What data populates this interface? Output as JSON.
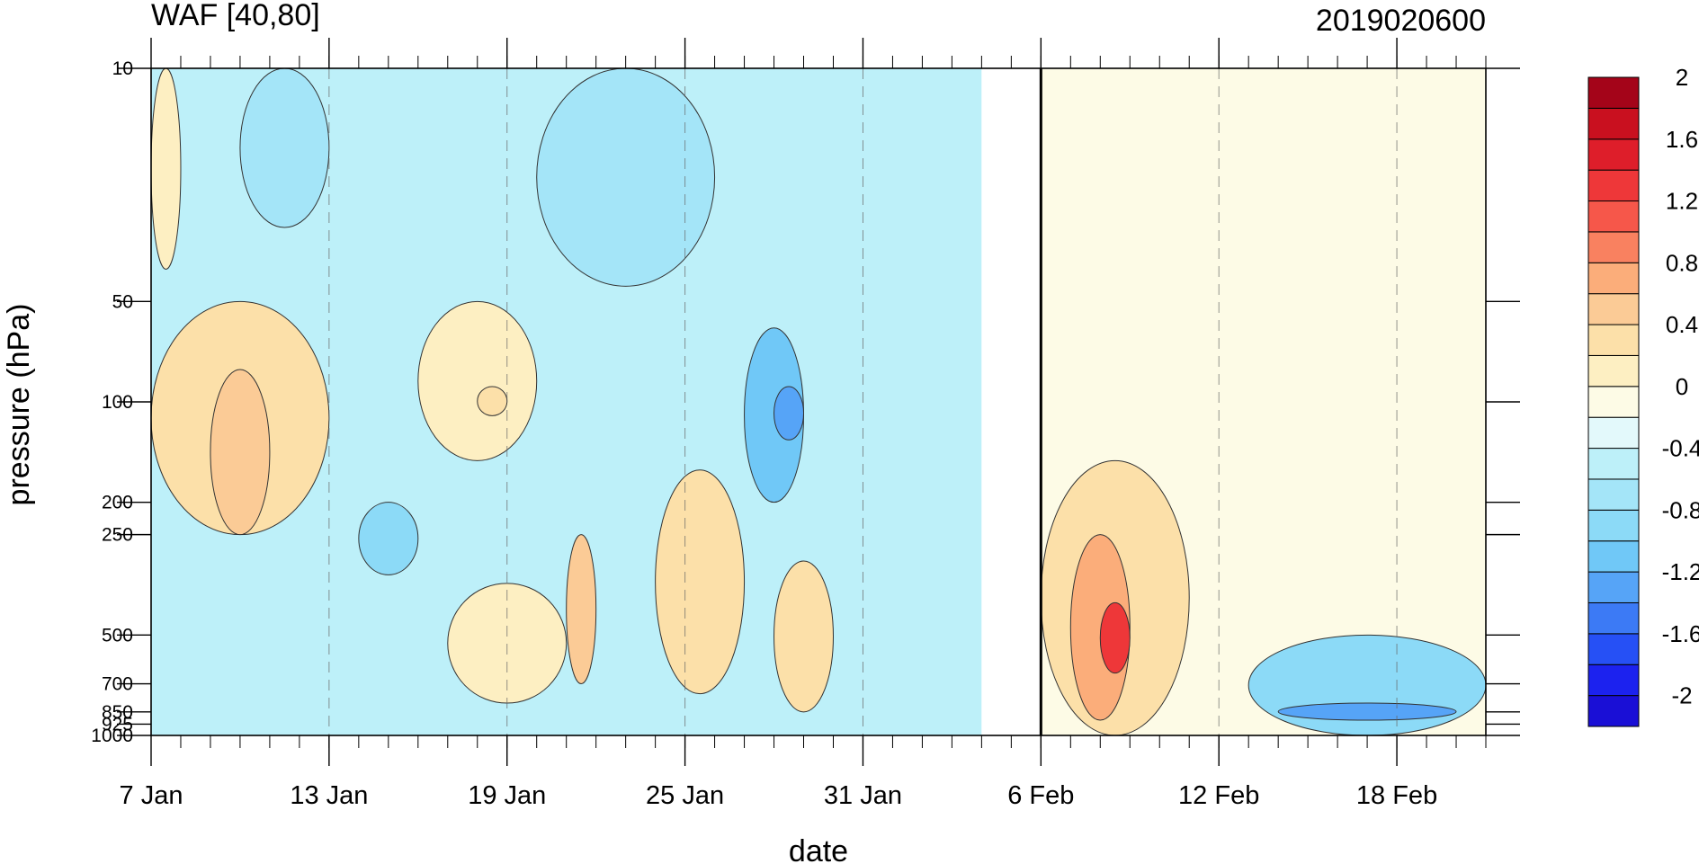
{
  "chart_data": {
    "type": "heatmap",
    "subtype": "filled-contour time-pressure section",
    "title_left": "WAF [40,80]",
    "title_right": "2019020600",
    "xlabel": "date",
    "ylabel": "pressure (hPa)",
    "y_scale": "log",
    "y_reversed": true,
    "y_range": [
      1000,
      10
    ],
    "y_ticks": [
      {
        "value": 10,
        "label": "10"
      },
      {
        "value": 50,
        "label": "50"
      },
      {
        "value": 100,
        "label": "100"
      },
      {
        "value": 200,
        "label": "200"
      },
      {
        "value": 250,
        "label": "250"
      },
      {
        "value": 500,
        "label": "500"
      },
      {
        "value": 700,
        "label": "700"
      },
      {
        "value": 850,
        "label": "850"
      },
      {
        "value": 925,
        "label": "925"
      },
      {
        "value": 1000,
        "label": "1000"
      }
    ],
    "x_range": [
      "2019-01-07",
      "2019-02-21"
    ],
    "x_ticks": [
      {
        "date": "2019-01-07",
        "label": "7 Jan"
      },
      {
        "date": "2019-01-13",
        "label": "13 Jan"
      },
      {
        "date": "2019-01-19",
        "label": "19 Jan"
      },
      {
        "date": "2019-01-25",
        "label": "25 Jan"
      },
      {
        "date": "2019-01-31",
        "label": "31 Jan"
      },
      {
        "date": "2019-02-06",
        "label": "6 Feb"
      },
      {
        "date": "2019-02-12",
        "label": "12 Feb"
      },
      {
        "date": "2019-02-18",
        "label": "18 Feb"
      }
    ],
    "analysis_date": "2019-02-06",
    "missing_data": [
      "2019-02-04",
      "2019-02-06"
    ],
    "grid": "dashed vertical lines at each labeled date",
    "colorbar": {
      "position": "right",
      "levels": [
        -2.2,
        -2,
        -1.8,
        -1.6,
        -1.4,
        -1.2,
        -1,
        -0.8,
        -0.6,
        -0.4,
        -0.2,
        0,
        0.2,
        0.4,
        0.6,
        0.8,
        1,
        1.2,
        1.4,
        1.6,
        1.8,
        2,
        2.2
      ],
      "labels": [
        {
          "value": 2,
          "label": "2"
        },
        {
          "value": 1.6,
          "label": "1.6"
        },
        {
          "value": 1.2,
          "label": "1.2"
        },
        {
          "value": 0.8,
          "label": "0.8"
        },
        {
          "value": 0.4,
          "label": "0.4"
        },
        {
          "value": 0,
          "label": "0"
        },
        {
          "value": -0.4,
          "label": "-0.4"
        },
        {
          "value": -0.8,
          "label": "-0.8"
        },
        {
          "value": -1.2,
          "label": "-1.2"
        },
        {
          "value": -1.6,
          "label": "-1.6"
        },
        {
          "value": -2,
          "label": "-2"
        }
      ],
      "colors": [
        "#1a0fd6",
        "#1c22ef",
        "#2650f5",
        "#3c7af5",
        "#56a4f7",
        "#70c8f7",
        "#8cdaf7",
        "#a4e5f8",
        "#bdf0f9",
        "#e3f9fb",
        "#fdfbe6",
        "#fdefc2",
        "#fce0a9",
        "#fbcb96",
        "#fbad7a",
        "#f98160",
        "#f6574a",
        "#ee3739",
        "#de1e2a",
        "#c9101f",
        "#a40419"
      ]
    },
    "regions": [
      {
        "t0": "2019-01-07",
        "t1": "2019-02-04",
        "p0": 10,
        "p1": 1000,
        "value": -0.5
      },
      {
        "t0": "2019-01-07",
        "t1": "2019-01-08",
        "p0": 10,
        "p1": 40,
        "value": 0.1
      },
      {
        "t0": "2019-01-07",
        "t1": "2019-01-13",
        "p0": 50,
        "p1": 250,
        "value": 0.3
      },
      {
        "t0": "2019-01-09",
        "t1": "2019-01-11",
        "p0": 80,
        "p1": 250,
        "value": 0.5
      },
      {
        "t0": "2019-01-16",
        "t1": "2019-01-20",
        "p0": 50,
        "p1": 150,
        "value": 0.1
      },
      {
        "t0": "2019-01-18",
        "t1": "2019-01-19",
        "p0": 90,
        "p1": 110,
        "value": 0.3
      },
      {
        "t0": "2019-01-17",
        "t1": "2019-01-21",
        "p0": 350,
        "p1": 800,
        "value": 0.1
      },
      {
        "t0": "2019-01-21",
        "t1": "2019-01-22",
        "p0": 250,
        "p1": 700,
        "value": 0.4
      },
      {
        "t0": "2019-01-24",
        "t1": "2019-01-27",
        "p0": 160,
        "p1": 750,
        "value": 0.3
      },
      {
        "t0": "2019-01-28",
        "t1": "2019-01-30",
        "p0": 300,
        "p1": 850,
        "value": 0.3
      },
      {
        "t0": "2019-01-14",
        "t1": "2019-01-16",
        "p0": 200,
        "p1": 330,
        "value": -0.9
      },
      {
        "t0": "2019-01-10",
        "t1": "2019-01-13",
        "p0": 10,
        "p1": 30,
        "value": -0.8
      },
      {
        "t0": "2019-01-20",
        "t1": "2019-01-26",
        "p0": 10,
        "p1": 45,
        "value": -0.8
      },
      {
        "t0": "2019-01-27",
        "t1": "2019-01-29",
        "p0": 60,
        "p1": 200,
        "value": -1.1
      },
      {
        "t0": "2019-01-28",
        "t1": "2019-01-29",
        "p0": 90,
        "p1": 130,
        "value": -1.4
      },
      {
        "t0": "2019-02-06",
        "t1": "2019-02-21",
        "p0": 10,
        "p1": 1000,
        "value": -0.2
      },
      {
        "t0": "2019-02-06",
        "t1": "2019-02-11",
        "p0": 150,
        "p1": 1000,
        "value": 0.3
      },
      {
        "t0": "2019-02-07",
        "t1": "2019-02-09",
        "p0": 250,
        "p1": 900,
        "value": 0.7
      },
      {
        "t0": "2019-02-08",
        "t1": "2019-02-09",
        "p0": 400,
        "p1": 650,
        "value": 1.2
      },
      {
        "t0": "2019-02-13",
        "t1": "2019-02-21",
        "p0": 500,
        "p1": 1000,
        "value": -0.9
      },
      {
        "t0": "2019-02-14",
        "t1": "2019-02-20",
        "p0": 800,
        "p1": 900,
        "value": -1.3
      }
    ]
  }
}
